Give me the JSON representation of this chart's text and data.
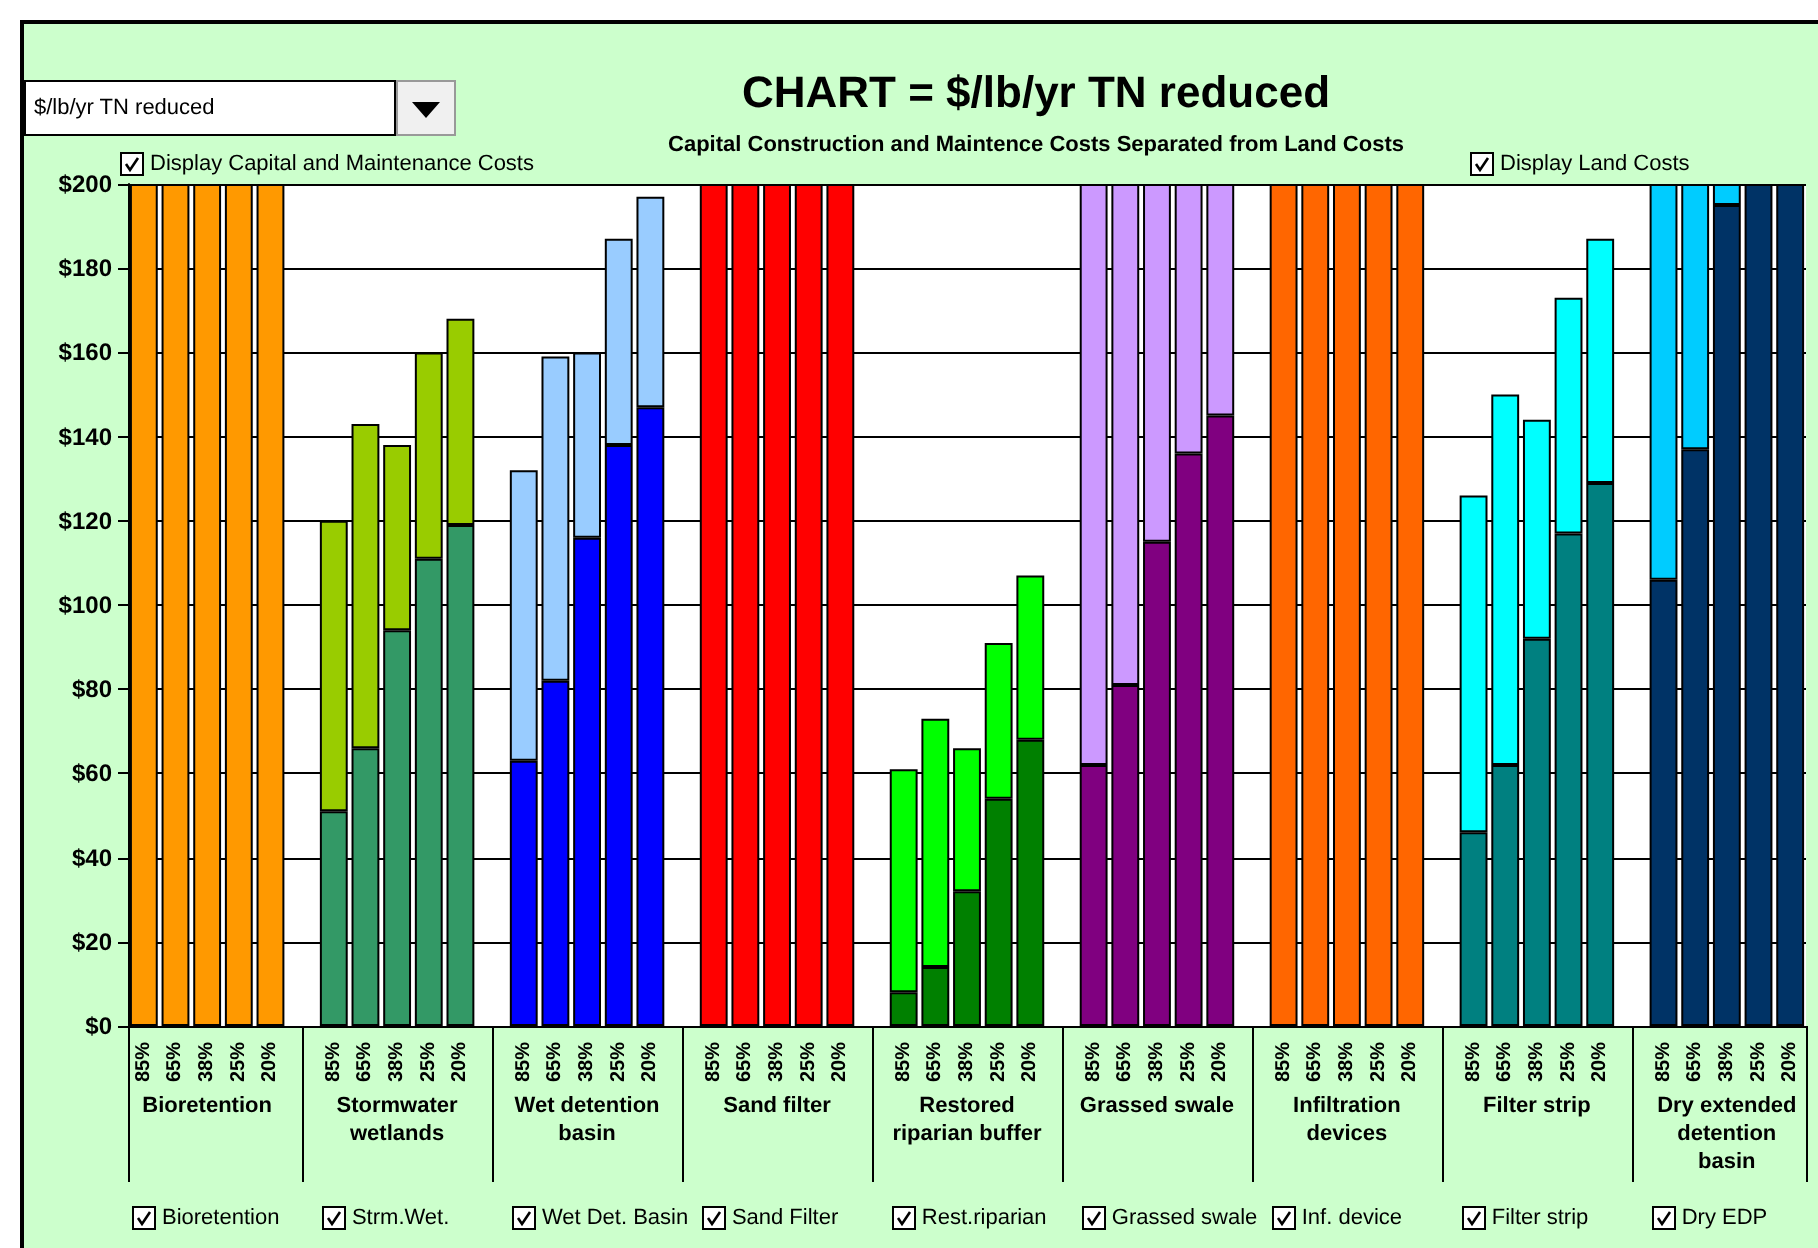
{
  "chart_data": {
    "type": "bar",
    "title": "CHART = $/lb/yr TN reduced",
    "subtitle": "Capital Construction and Maintence Costs Separated from Land Costs",
    "categories": [
      "85%",
      "65%",
      "38%",
      "25%",
      "20%",
      null,
      "85%",
      "65%",
      "38%",
      "25%",
      "20%",
      null,
      "85%",
      "65%",
      "38%",
      "25%",
      "20%",
      null,
      "85%",
      "65%",
      "38%",
      "25%",
      "20%",
      null,
      "85%",
      "65%",
      "38%",
      "25%",
      "20%",
      null,
      "85%",
      "65%",
      "38%",
      "25%",
      "20%",
      null,
      "85%",
      "65%",
      "38%",
      "25%",
      "20%",
      null,
      "85%",
      "65%",
      "38%",
      "25%",
      "20%",
      null,
      "85%",
      "65%",
      "38%",
      "25%",
      "20%"
    ],
    "stacked": true,
    "series": [
      {
        "colors": [
          "#ff9900",
          "#ff9900",
          "#ff9900",
          "#ff9900",
          "#ff9900",
          null,
          "#339966",
          "#339966",
          "#339966",
          "#339966",
          "#339966",
          null,
          "#0000ff",
          "#0000ff",
          "#0000ff",
          "#0000ff",
          "#0000ff",
          null,
          "#ff0000",
          "#ff0000",
          "#ff0000",
          "#ff0000",
          "#ff0000",
          null,
          "#008000",
          "#008000",
          "#008000",
          "#008000",
          "#008000",
          null,
          "#800080",
          "#800080",
          "#800080",
          "#800080",
          "#800080",
          null,
          "#ff6600",
          "#ff6600",
          "#ff6600",
          "#ff6600",
          "#ff6600",
          null,
          "#008080",
          "#008080",
          "#008080",
          "#008080",
          "#008080",
          null,
          "#003366",
          "#003366",
          "#003366",
          "#003366",
          "#003366"
        ],
        "values": [
          200,
          200,
          200,
          200,
          200,
          null,
          51,
          66,
          94,
          111,
          119,
          null,
          63,
          82,
          116,
          138,
          147,
          null,
          200,
          200,
          200,
          200,
          200,
          null,
          8,
          14,
          32,
          54,
          68,
          null,
          62,
          81,
          115,
          136,
          145,
          null,
          200,
          200,
          200,
          200,
          200,
          null,
          46,
          62,
          92,
          117,
          129,
          null,
          106,
          137,
          195,
          200,
          200
        ]
      },
      {
        "colors": [
          null,
          null,
          null,
          null,
          null,
          null,
          "#99cc00",
          "#99cc00",
          "#99cc00",
          "#99cc00",
          "#99cc00",
          null,
          "#99ccff",
          "#99ccff",
          "#99ccff",
          "#99ccff",
          "#99ccff",
          null,
          null,
          null,
          null,
          null,
          null,
          null,
          "#00ff00",
          "#00ff00",
          "#00ff00",
          "#00ff00",
          "#00ff00",
          null,
          "#cc99ff",
          "#cc99ff",
          "#cc99ff",
          "#cc99ff",
          "#cc99ff",
          null,
          null,
          null,
          null,
          null,
          null,
          null,
          "#00ffff",
          "#00ffff",
          "#00ffff",
          "#00ffff",
          "#00ffff",
          null,
          "#00ccff",
          "#00ccff",
          "#00ccff",
          null,
          null
        ],
        "values": [
          null,
          null,
          null,
          null,
          null,
          null,
          69,
          77,
          44,
          49,
          49,
          null,
          69,
          77,
          44,
          49,
          50,
          null,
          null,
          null,
          null,
          null,
          null,
          null,
          53,
          59,
          34,
          37,
          39,
          null,
          138,
          119,
          85,
          64,
          55,
          null,
          null,
          null,
          null,
          null,
          null,
          null,
          80,
          88,
          52,
          56,
          58,
          null,
          94,
          63,
          5,
          null,
          null
        ]
      }
    ],
    "ylim": [
      0,
      200
    ],
    "yticks": [
      {
        "value": 0,
        "label": "$0"
      },
      {
        "value": 20,
        "label": "$20"
      },
      {
        "value": 40,
        "label": "$40"
      },
      {
        "value": 60,
        "label": "$60"
      },
      {
        "value": 80,
        "label": "$80"
      },
      {
        "value": 100,
        "label": "$100"
      },
      {
        "value": 120,
        "label": "$120"
      },
      {
        "value": 140,
        "label": "$140"
      },
      {
        "value": 160,
        "label": "$160"
      },
      {
        "value": 180,
        "label": "$180"
      },
      {
        "value": 200,
        "label": "$200"
      }
    ],
    "grid": "y",
    "annotations": [
      "$/lb/yr TN reduced",
      "Display Capital and Maintenance Costs",
      "Display Land Costs",
      "Bioretention",
      "Stormwater wetlands",
      "Wet detention basin",
      "Sand filter",
      "Restored riparian buffer",
      "Grassed swale",
      "Infiltration devices",
      "Filter strip",
      "Dry extended detention basin",
      "Bioretention",
      "Strm.Wet.",
      "Wet Det. Basin",
      "Sand Filter",
      "Rest.riparian",
      "Grassed swale",
      "Inf. device",
      "Filter strip",
      "Dry EDP"
    ]
  }
}
